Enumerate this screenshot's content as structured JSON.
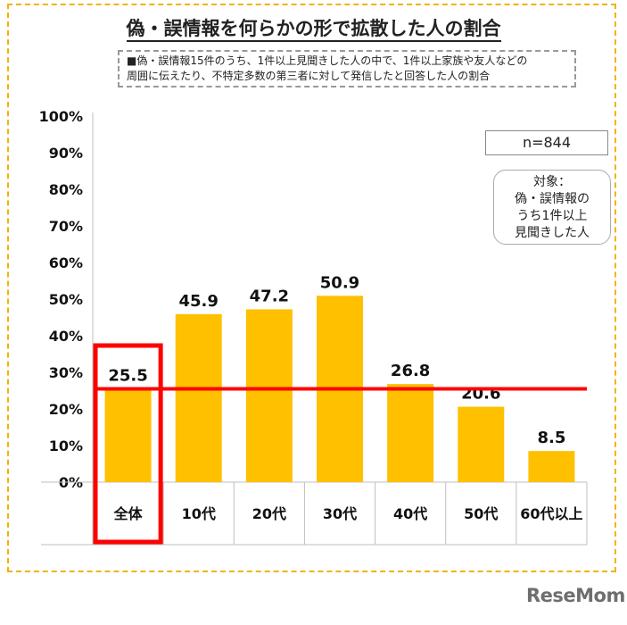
{
  "title": "偽・誤情報を何らかの形で拡散した人の割合",
  "note": {
    "line1": "■偽・誤情報15件のうち、1件以上見聞きした人の中で、1件以上家族や友人などの",
    "line2": "周囲に伝えたり、不特定多数の第三者に対して発信したと回答した人の割合"
  },
  "sample_size": "n=844",
  "target_box": {
    "line1": "対象：",
    "line2": "偽・誤情報の",
    "line3": "うち1件以上",
    "line4": "見聞きした人"
  },
  "brand": "ReseMom",
  "colors": {
    "bar": "#ffc000",
    "reference_line": "#ff0000",
    "highlight_box": "#ff0000"
  },
  "chart_data": {
    "type": "bar",
    "categories": [
      "全体",
      "10代",
      "20代",
      "30代",
      "40代",
      "50代",
      "60代以上"
    ],
    "values": [
      25.5,
      45.9,
      47.2,
      50.9,
      26.8,
      20.6,
      8.5
    ],
    "value_labels": [
      "25.5",
      "45.9",
      "47.2",
      "50.9",
      "26.8",
      "20.6",
      "8.5"
    ],
    "ylim": [
      0,
      100
    ],
    "yticks": [
      "0%",
      "10%",
      "20%",
      "30%",
      "40%",
      "50%",
      "60%",
      "70%",
      "80%",
      "90%",
      "100%"
    ],
    "reference_value": 25.5,
    "highlighted_category": "全体",
    "grid": false
  }
}
